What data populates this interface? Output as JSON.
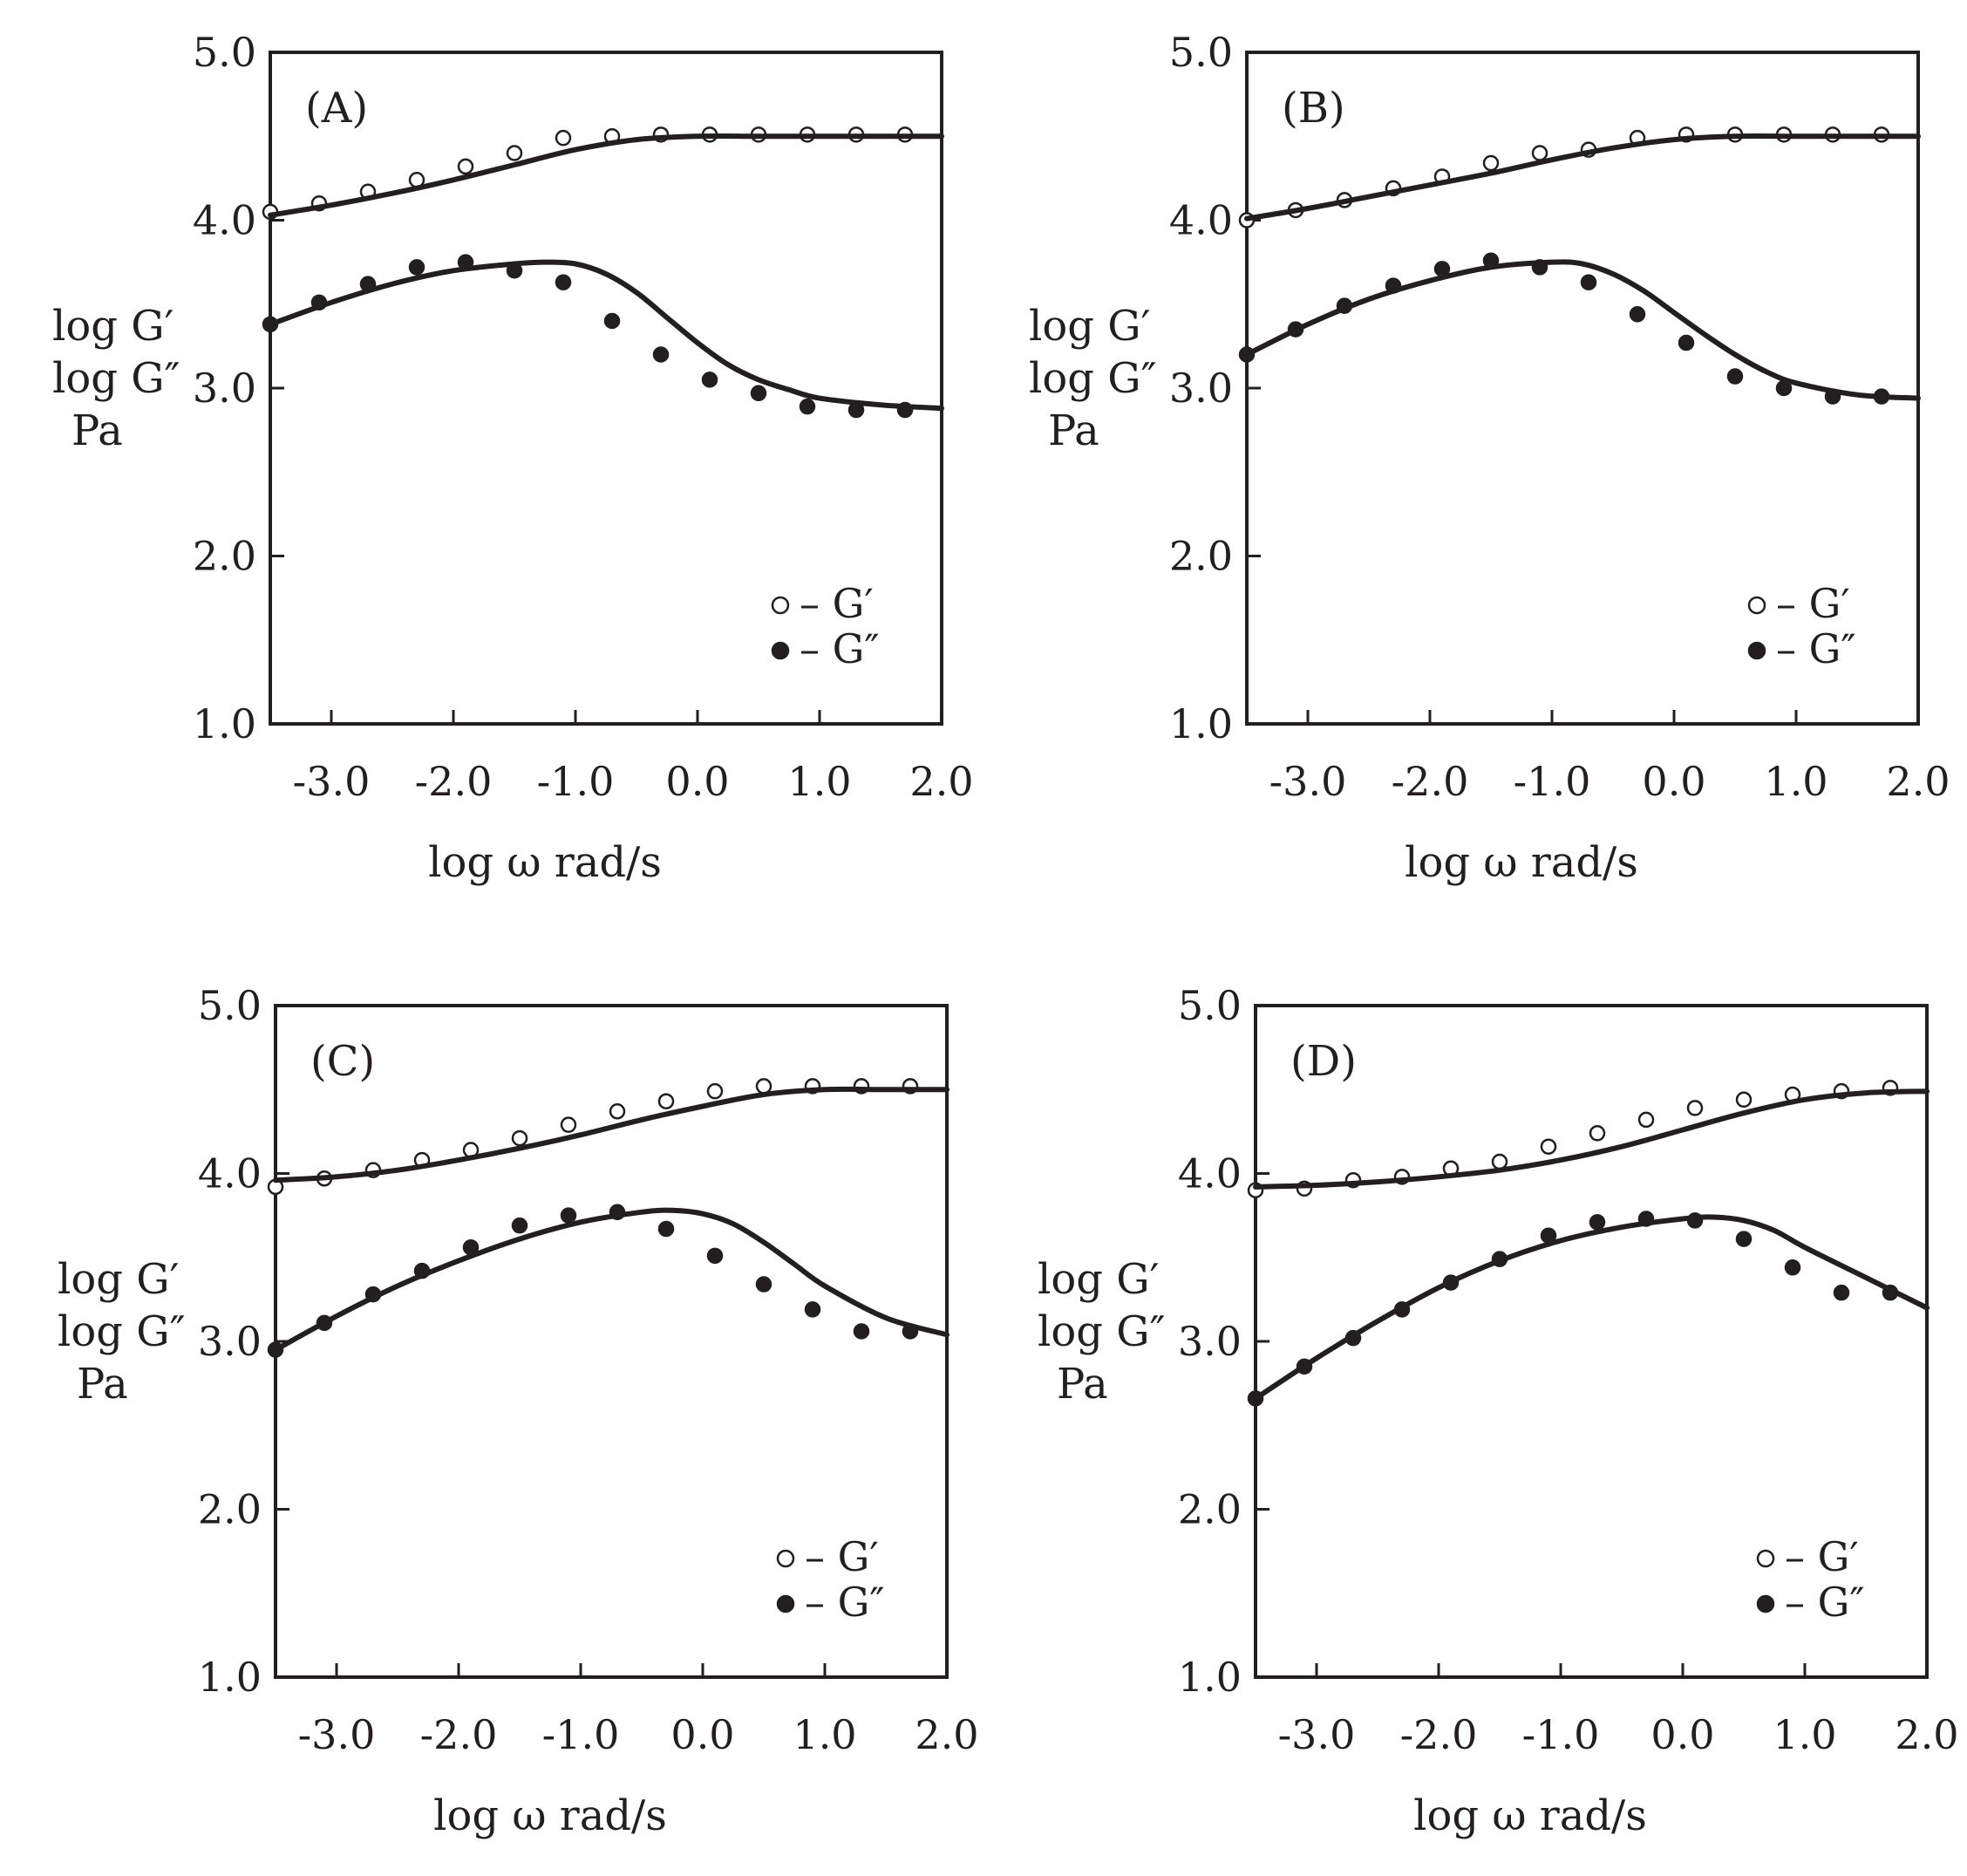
{
  "colors": {
    "ink": "#231f20",
    "background": "#ffffff"
  },
  "chart_data": [
    {
      "type": "line",
      "panel_label": "(A)",
      "title": "",
      "xlabel": "log ω  rad/s",
      "ylabel": [
        "log G′",
        "log G″",
        "Pa"
      ],
      "xlim": [
        -3.5,
        2.0
      ],
      "ylim": [
        1.0,
        5.0
      ],
      "x_ticks": [
        -3.0,
        -2.0,
        -1.0,
        0.0,
        1.0,
        2.0
      ],
      "x_tick_labels": [
        "-3.0",
        "-2.0",
        "-1.0",
        "0.0",
        "1.0",
        "2.0"
      ],
      "y_ticks": [
        1.0,
        2.0,
        3.0,
        4.0,
        5.0
      ],
      "y_tick_labels": [
        "1.0",
        "2.0",
        "3.0",
        "4.0",
        "5.0"
      ],
      "grid": false,
      "legend": {
        "position": "bottom-right",
        "entries": [
          {
            "marker": "open-circle",
            "label": "– G′"
          },
          {
            "marker": "filled-circle",
            "label": "– G″"
          }
        ]
      },
      "series": [
        {
          "name": "G′",
          "marker": "open-circle",
          "x": [
            -3.5,
            -3.1,
            -2.7,
            -2.3,
            -1.9,
            -1.5,
            -1.1,
            -0.7,
            -0.3,
            0.1,
            0.5,
            0.9,
            1.3,
            1.7
          ],
          "y": [
            4.05,
            4.1,
            4.17,
            4.24,
            4.32,
            4.4,
            4.49,
            4.5,
            4.51,
            4.51,
            4.51,
            4.51,
            4.51,
            4.51
          ]
        },
        {
          "name": "G″",
          "marker": "filled-circle",
          "x": [
            -3.5,
            -3.1,
            -2.7,
            -2.3,
            -1.9,
            -1.5,
            -1.1,
            -0.7,
            -0.3,
            0.1,
            0.5,
            0.9,
            1.3,
            1.7
          ],
          "y": [
            3.38,
            3.51,
            3.62,
            3.72,
            3.75,
            3.7,
            3.63,
            3.4,
            3.2,
            3.05,
            2.97,
            2.89,
            2.87,
            2.87
          ]
        },
        {
          "name": "G′ fit",
          "style": "line",
          "x": [
            -3.5,
            -3.0,
            -2.5,
            -2.0,
            -1.5,
            -1.0,
            -0.5,
            0.0,
            0.5,
            1.0,
            1.5,
            2.0
          ],
          "y": [
            4.03,
            4.09,
            4.16,
            4.24,
            4.33,
            4.42,
            4.48,
            4.5,
            4.5,
            4.5,
            4.5,
            4.5
          ]
        },
        {
          "name": "G″ fit",
          "style": "line",
          "x": [
            -3.5,
            -3.0,
            -2.5,
            -2.0,
            -1.5,
            -1.25,
            -1.0,
            -0.75,
            -0.5,
            -0.25,
            0.0,
            0.25,
            0.5,
            0.75,
            1.0,
            1.5,
            2.0
          ],
          "y": [
            3.38,
            3.51,
            3.62,
            3.7,
            3.74,
            3.75,
            3.74,
            3.68,
            3.57,
            3.42,
            3.27,
            3.14,
            3.05,
            2.99,
            2.94,
            2.9,
            2.88
          ]
        }
      ]
    },
    {
      "type": "line",
      "panel_label": "(B)",
      "title": "",
      "xlabel": "log ω  rad/s",
      "ylabel": [
        "log G′",
        "log G″",
        "Pa"
      ],
      "xlim": [
        -3.5,
        2.0
      ],
      "ylim": [
        1.0,
        5.0
      ],
      "x_ticks": [
        -3.0,
        -2.0,
        -1.0,
        0.0,
        1.0,
        2.0
      ],
      "x_tick_labels": [
        "-3.0",
        "-2.0",
        "-1.0",
        "0.0",
        "1.0",
        "2.0"
      ],
      "y_ticks": [
        1.0,
        2.0,
        3.0,
        4.0,
        5.0
      ],
      "y_tick_labels": [
        "1.0",
        "2.0",
        "3.0",
        "4.0",
        "5.0"
      ],
      "grid": false,
      "legend": {
        "position": "bottom-right",
        "entries": [
          {
            "marker": "open-circle",
            "label": "– G′"
          },
          {
            "marker": "filled-circle",
            "label": "– G″"
          }
        ]
      },
      "series": [
        {
          "name": "G′",
          "marker": "open-circle",
          "x": [
            -3.5,
            -3.1,
            -2.7,
            -2.3,
            -1.9,
            -1.5,
            -1.1,
            -0.7,
            -0.3,
            0.1,
            0.5,
            0.9,
            1.3,
            1.7
          ],
          "y": [
            4.0,
            4.06,
            4.12,
            4.19,
            4.26,
            4.34,
            4.4,
            4.42,
            4.49,
            4.51,
            4.51,
            4.51,
            4.51,
            4.51
          ]
        },
        {
          "name": "G″",
          "marker": "filled-circle",
          "x": [
            -3.5,
            -3.1,
            -2.7,
            -2.3,
            -1.9,
            -1.5,
            -1.1,
            -0.7,
            -0.3,
            0.1,
            0.5,
            0.9,
            1.3,
            1.7
          ],
          "y": [
            3.2,
            3.35,
            3.49,
            3.61,
            3.71,
            3.76,
            3.72,
            3.63,
            3.44,
            3.27,
            3.07,
            3.0,
            2.95,
            2.95
          ]
        },
        {
          "name": "G′ fit",
          "style": "line",
          "x": [
            -3.5,
            -3.0,
            -2.5,
            -2.0,
            -1.5,
            -1.0,
            -0.5,
            0.0,
            0.5,
            1.0,
            1.5,
            2.0
          ],
          "y": [
            4.01,
            4.07,
            4.14,
            4.21,
            4.28,
            4.36,
            4.43,
            4.48,
            4.5,
            4.5,
            4.5,
            4.5
          ]
        },
        {
          "name": "G″ fit",
          "style": "line",
          "x": [
            -3.5,
            -3.0,
            -2.5,
            -2.0,
            -1.5,
            -1.0,
            -0.75,
            -0.5,
            -0.25,
            0.0,
            0.25,
            0.5,
            0.75,
            1.0,
            1.5,
            2.0
          ],
          "y": [
            3.2,
            3.38,
            3.53,
            3.64,
            3.72,
            3.75,
            3.74,
            3.68,
            3.58,
            3.45,
            3.32,
            3.2,
            3.1,
            3.03,
            2.96,
            2.94
          ]
        }
      ]
    },
    {
      "type": "line",
      "panel_label": "(C)",
      "title": "",
      "xlabel": "log ω  rad/s",
      "ylabel": [
        "log G′",
        "log G″",
        "Pa"
      ],
      "xlim": [
        -3.5,
        2.0
      ],
      "ylim": [
        1.0,
        5.0
      ],
      "x_ticks": [
        -3.0,
        -2.0,
        -1.0,
        0.0,
        1.0,
        2.0
      ],
      "x_tick_labels": [
        "-3.0",
        "-2.0",
        "-1.0",
        "0.0",
        "1.0",
        "2.0"
      ],
      "y_ticks": [
        1.0,
        2.0,
        3.0,
        4.0,
        5.0
      ],
      "y_tick_labels": [
        "1.0",
        "2.0",
        "3.0",
        "4.0",
        "5.0"
      ],
      "grid": false,
      "legend": {
        "position": "bottom-right",
        "entries": [
          {
            "marker": "open-circle",
            "label": "– G′"
          },
          {
            "marker": "filled-circle",
            "label": "– G″"
          }
        ]
      },
      "series": [
        {
          "name": "G′",
          "marker": "open-circle",
          "x": [
            -3.5,
            -3.1,
            -2.7,
            -2.3,
            -1.9,
            -1.5,
            -1.1,
            -0.7,
            -0.3,
            0.1,
            0.5,
            0.9,
            1.3,
            1.7
          ],
          "y": [
            3.92,
            3.97,
            4.02,
            4.08,
            4.14,
            4.21,
            4.29,
            4.37,
            4.43,
            4.49,
            4.52,
            4.52,
            4.52,
            4.52
          ]
        },
        {
          "name": "G″",
          "marker": "filled-circle",
          "x": [
            -3.5,
            -3.1,
            -2.7,
            -2.3,
            -1.9,
            -1.5,
            -1.1,
            -0.7,
            -0.3,
            0.1,
            0.5,
            0.9,
            1.3,
            1.7
          ],
          "y": [
            2.95,
            3.11,
            3.28,
            3.42,
            3.56,
            3.69,
            3.75,
            3.77,
            3.67,
            3.51,
            3.34,
            3.19,
            3.06,
            3.06
          ]
        },
        {
          "name": "G′ fit",
          "style": "line",
          "x": [
            -3.5,
            -3.0,
            -2.5,
            -2.0,
            -1.5,
            -1.0,
            -0.5,
            0.0,
            0.5,
            1.0,
            1.5,
            2.0
          ],
          "y": [
            3.96,
            3.98,
            4.02,
            4.08,
            4.15,
            4.23,
            4.32,
            4.4,
            4.47,
            4.5,
            4.5,
            4.5
          ]
        },
        {
          "name": "G″ fit",
          "style": "line",
          "x": [
            -3.5,
            -3.0,
            -2.5,
            -2.0,
            -1.5,
            -1.0,
            -0.5,
            -0.25,
            0.0,
            0.25,
            0.5,
            0.75,
            1.0,
            1.5,
            2.0
          ],
          "y": [
            2.95,
            3.15,
            3.33,
            3.48,
            3.61,
            3.71,
            3.77,
            3.78,
            3.76,
            3.7,
            3.59,
            3.46,
            3.33,
            3.14,
            3.04
          ]
        }
      ]
    },
    {
      "type": "line",
      "panel_label": "(D)",
      "title": "",
      "xlabel": "log ω  rad/s",
      "ylabel": [
        "log G′",
        "log G″",
        "Pa"
      ],
      "xlim": [
        -3.5,
        2.0
      ],
      "ylim": [
        1.0,
        5.0
      ],
      "x_ticks": [
        -3.0,
        -2.0,
        -1.0,
        0.0,
        1.0,
        2.0
      ],
      "x_tick_labels": [
        "-3.0",
        "-2.0",
        "-1.0",
        "0.0",
        "1.0",
        "2.0"
      ],
      "y_ticks": [
        1.0,
        2.0,
        3.0,
        4.0,
        5.0
      ],
      "y_tick_labels": [
        "1.0",
        "2.0",
        "3.0",
        "4.0",
        "5.0"
      ],
      "grid": false,
      "legend": {
        "position": "bottom-right",
        "entries": [
          {
            "marker": "open-circle",
            "label": "– G′"
          },
          {
            "marker": "filled-circle",
            "label": "– G″"
          }
        ]
      },
      "series": [
        {
          "name": "G′",
          "marker": "open-circle",
          "x": [
            -3.5,
            -3.1,
            -2.7,
            -2.3,
            -1.9,
            -1.5,
            -1.1,
            -0.7,
            -0.3,
            0.1,
            0.5,
            0.9,
            1.3,
            1.7
          ],
          "y": [
            3.9,
            3.91,
            3.96,
            3.98,
            4.03,
            4.07,
            4.16,
            4.24,
            4.32,
            4.39,
            4.44,
            4.47,
            4.49,
            4.51
          ]
        },
        {
          "name": "G″",
          "marker": "filled-circle",
          "x": [
            -3.5,
            -3.1,
            -2.7,
            -2.3,
            -1.9,
            -1.5,
            -1.1,
            -0.7,
            -0.3,
            0.1,
            0.5,
            0.9,
            1.3,
            1.7
          ],
          "y": [
            2.66,
            2.85,
            3.02,
            3.19,
            3.35,
            3.49,
            3.63,
            3.71,
            3.73,
            3.72,
            3.61,
            3.44,
            3.29,
            3.29
          ]
        },
        {
          "name": "G′ fit",
          "style": "line",
          "x": [
            -3.5,
            -3.0,
            -2.5,
            -2.0,
            -1.5,
            -1.0,
            -0.5,
            0.0,
            0.5,
            1.0,
            1.5,
            2.0
          ],
          "y": [
            3.92,
            3.93,
            3.95,
            3.98,
            4.02,
            4.08,
            4.16,
            4.26,
            4.36,
            4.44,
            4.48,
            4.49
          ]
        },
        {
          "name": "G″ fit",
          "style": "line",
          "x": [
            -3.5,
            -3.0,
            -2.5,
            -2.0,
            -1.5,
            -1.0,
            -0.5,
            0.0,
            0.25,
            0.5,
            0.75,
            1.0,
            1.5,
            2.0
          ],
          "y": [
            2.66,
            2.9,
            3.12,
            3.32,
            3.48,
            3.6,
            3.68,
            3.73,
            3.74,
            3.72,
            3.66,
            3.56,
            3.38,
            3.2
          ]
        }
      ]
    }
  ]
}
